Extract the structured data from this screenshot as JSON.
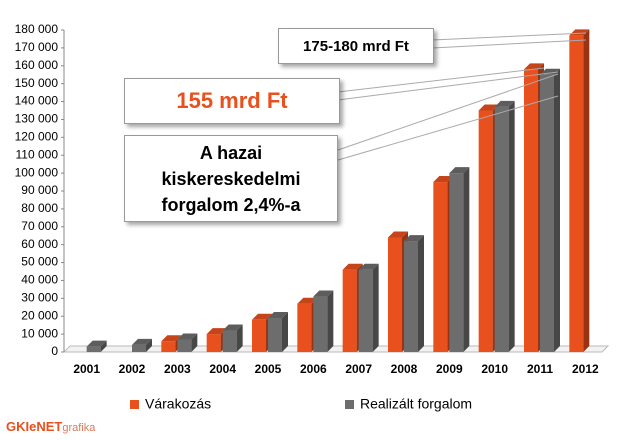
{
  "chart_data": {
    "type": "bar",
    "categories": [
      "2001",
      "2002",
      "2003",
      "2004",
      "2005",
      "2006",
      "2007",
      "2008",
      "2009",
      "2010",
      "2011",
      "2012"
    ],
    "series": [
      {
        "name": "Várakozás",
        "color": "#e8501e",
        "values": [
          null,
          null,
          6000,
          10000,
          18000,
          27000,
          46000,
          64000,
          95000,
          135000,
          158000,
          177000
        ]
      },
      {
        "name": "Realizált forgalom",
        "color": "#6d6d6d",
        "values": [
          3000,
          4000,
          7000,
          12000,
          19000,
          31000,
          46000,
          62000,
          100000,
          137000,
          155000,
          null
        ]
      }
    ],
    "ylim": [
      0,
      180000
    ],
    "yticks": [
      0,
      {
        "value": 10000,
        "label": "10 000"
      },
      {
        "value": 20000,
        "label": "20 000"
      },
      {
        "value": 30000,
        "label": "30 000"
      },
      {
        "value": 40000,
        "label": "40 000"
      },
      {
        "value": 50000,
        "label": "50 000"
      },
      {
        "value": 60000,
        "label": "60 000"
      },
      {
        "value": 70000,
        "label": "70 000"
      },
      {
        "value": 80000,
        "label": "80 000"
      },
      {
        "value": 90000,
        "label": "90 000"
      },
      {
        "value": 100000,
        "label": "100 000"
      },
      {
        "value": 110000,
        "label": "110 000"
      },
      {
        "value": 120000,
        "label": "120 000"
      },
      {
        "value": 130000,
        "label": "130 000"
      },
      {
        "value": 140000,
        "label": "140 000"
      },
      {
        "value": 150000,
        "label": "150 000"
      },
      {
        "value": 160000,
        "label": "160 000"
      },
      {
        "value": 170000,
        "label": "170 000"
      },
      {
        "value": 180000,
        "label": "180 000"
      }
    ],
    "grid": false,
    "annotations": [
      {
        "text": "175-180 mrd Ft"
      },
      {
        "text": "155 mrd Ft"
      },
      {
        "text": "A hazai kiskereskedelmi forgalom 2,4%-a"
      }
    ]
  },
  "logo": {
    "brand": "GKIeNET",
    "suffix": "grafika"
  }
}
